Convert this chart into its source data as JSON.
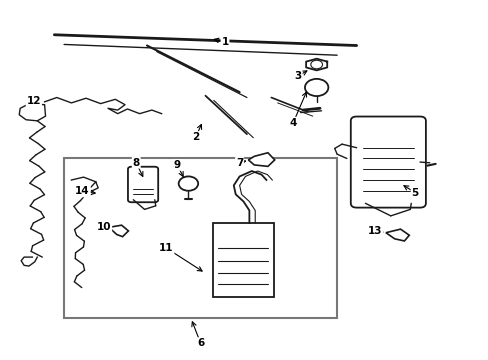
{
  "background_color": "#ffffff",
  "line_color": "#1a1a1a",
  "text_color": "#000000",
  "figsize": [
    4.89,
    3.6
  ],
  "dpi": 100,
  "leaders": {
    "1": {
      "label": [
        0.46,
        0.885
      ],
      "arrow": [
        0.43,
        0.895
      ]
    },
    "2": {
      "label": [
        0.4,
        0.62
      ],
      "arrow": [
        0.415,
        0.665
      ]
    },
    "3": {
      "label": [
        0.61,
        0.79
      ],
      "arrow": [
        0.635,
        0.81
      ]
    },
    "4": {
      "label": [
        0.6,
        0.66
      ],
      "arrow": [
        0.63,
        0.755
      ]
    },
    "5": {
      "label": [
        0.85,
        0.465
      ],
      "arrow": [
        0.82,
        0.49
      ]
    },
    "6": {
      "label": [
        0.41,
        0.045
      ],
      "arrow": [
        0.39,
        0.115
      ]
    },
    "7": {
      "label": [
        0.49,
        0.548
      ],
      "arrow": [
        0.51,
        0.556
      ]
    },
    "8": {
      "label": [
        0.278,
        0.548
      ],
      "arrow": [
        0.295,
        0.5
      ]
    },
    "9": {
      "label": [
        0.362,
        0.542
      ],
      "arrow": [
        0.378,
        0.5
      ]
    },
    "10": {
      "label": [
        0.212,
        0.368
      ],
      "arrow": [
        0.232,
        0.362
      ]
    },
    "11": {
      "label": [
        0.34,
        0.31
      ],
      "arrow": [
        0.42,
        0.24
      ]
    },
    "12": {
      "label": [
        0.068,
        0.72
      ],
      "arrow": [
        0.088,
        0.718
      ]
    },
    "13": {
      "label": [
        0.768,
        0.358
      ],
      "arrow": [
        0.792,
        0.353
      ]
    },
    "14": {
      "label": [
        0.168,
        0.468
      ],
      "arrow": [
        0.202,
        0.462
      ]
    }
  }
}
